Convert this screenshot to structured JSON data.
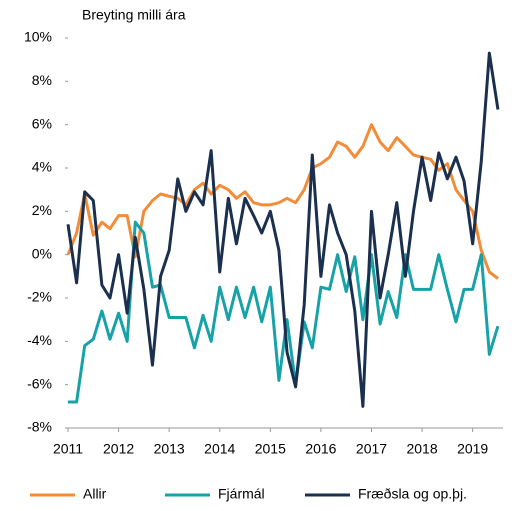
{
  "chart_data": {
    "type": "line",
    "ylabel": "Breyting milli ára",
    "x": [
      2011,
      2011.17,
      2011.33,
      2011.5,
      2011.67,
      2011.83,
      2012,
      2012.17,
      2012.33,
      2012.5,
      2012.67,
      2012.83,
      2013,
      2013.17,
      2013.33,
      2013.5,
      2013.67,
      2013.83,
      2014,
      2014.17,
      2014.33,
      2014.5,
      2014.67,
      2014.83,
      2015,
      2015.17,
      2015.33,
      2015.5,
      2015.67,
      2015.83,
      2016,
      2016.17,
      2016.33,
      2016.5,
      2016.67,
      2016.83,
      2017,
      2017.17,
      2017.33,
      2017.5,
      2017.67,
      2017.83,
      2018,
      2018.17,
      2018.33,
      2018.5,
      2018.67,
      2018.83,
      2019,
      2019.17,
      2019.33,
      2019.5
    ],
    "series": [
      {
        "name": "Allir",
        "color": "#f28c38",
        "values": [
          0.0,
          1.0,
          2.8,
          0.9,
          1.5,
          1.2,
          1.8,
          1.8,
          -0.1,
          2.0,
          2.5,
          2.8,
          2.7,
          2.6,
          2.3,
          3.0,
          3.3,
          2.8,
          3.2,
          3.0,
          2.6,
          2.9,
          2.4,
          2.3,
          2.3,
          2.4,
          2.6,
          2.4,
          3.0,
          4.0,
          4.2,
          4.5,
          5.2,
          5.0,
          4.5,
          5.0,
          6.0,
          5.2,
          4.8,
          5.4,
          5.0,
          4.6,
          4.5,
          4.4,
          3.9,
          4.2,
          3.0,
          2.5,
          2.0,
          0.2,
          -0.8,
          -1.1
        ]
      },
      {
        "name": "Fjármál",
        "color": "#17a2a8",
        "values": [
          -6.8,
          -6.8,
          -4.2,
          -3.9,
          -2.6,
          -3.9,
          -2.7,
          -4.0,
          1.5,
          1.0,
          -1.5,
          -1.4,
          -2.9,
          -2.9,
          -2.9,
          -4.3,
          -2.8,
          -4.0,
          -1.5,
          -3.0,
          -1.5,
          -2.9,
          -1.5,
          -3.1,
          -1.5,
          -5.8,
          -3.0,
          -6.0,
          -3.1,
          -4.3,
          -1.5,
          -1.6,
          0.0,
          -1.7,
          -0.1,
          -3.0,
          0.0,
          -3.2,
          -1.7,
          -2.9,
          0.0,
          -1.6,
          -1.6,
          -1.6,
          0.0,
          -1.6,
          -3.1,
          -1.6,
          -1.6,
          0.0,
          -4.6,
          -3.3
        ]
      },
      {
        "name": "Fræðsla og op.þj.",
        "color": "#1b2f4e",
        "values": [
          1.4,
          -1.3,
          2.9,
          2.5,
          -1.4,
          -2.0,
          0.0,
          -2.7,
          0.8,
          -1.6,
          -5.1,
          -1.0,
          0.2,
          3.5,
          2.0,
          2.9,
          2.3,
          4.8,
          -0.8,
          2.6,
          0.5,
          2.6,
          1.8,
          1.0,
          2.0,
          0.2,
          -4.5,
          -6.1,
          -2.3,
          4.6,
          -1.0,
          2.3,
          1.0,
          0.0,
          -2.6,
          -7.0,
          2.0,
          -2.0,
          0.0,
          2.4,
          -1.0,
          2.0,
          4.5,
          2.5,
          4.7,
          3.5,
          4.5,
          3.4,
          0.5,
          4.3,
          9.3,
          6.7
        ]
      }
    ],
    "xlim": [
      2011,
      2019.6
    ],
    "xticks": [
      2011,
      2012,
      2013,
      2014,
      2015,
      2016,
      2017,
      2018,
      2019
    ],
    "ylim": [
      -8,
      10
    ],
    "yticks": [
      {
        "value": -8,
        "label": "-8%"
      },
      {
        "value": -6,
        "label": "-6%"
      },
      {
        "value": -4,
        "label": "-4%"
      },
      {
        "value": -2,
        "label": "-2%"
      },
      {
        "value": 0,
        "label": "0%"
      },
      {
        "value": 2,
        "label": "2%"
      },
      {
        "value": 4,
        "label": "4%"
      },
      {
        "value": 6,
        "label": "6%"
      },
      {
        "value": 8,
        "label": "8%"
      },
      {
        "value": 10,
        "label": "10%"
      }
    ],
    "legend": "bottom"
  }
}
